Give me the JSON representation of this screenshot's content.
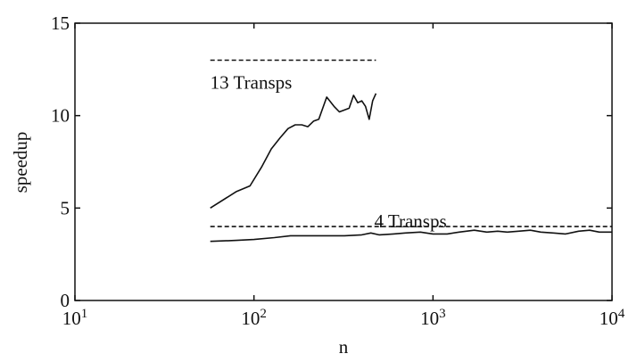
{
  "chart_data": {
    "type": "line",
    "title": "",
    "xlabel": "n",
    "ylabel": "speedup",
    "x_scale": "log",
    "xlim": [
      10,
      10000
    ],
    "ylim": [
      0,
      15
    ],
    "grid": false,
    "x_ticks": [
      {
        "value": 10,
        "base": "10",
        "exp": "1"
      },
      {
        "value": 100,
        "base": "10",
        "exp": "2"
      },
      {
        "value": 1000,
        "base": "10",
        "exp": "3"
      },
      {
        "value": 10000,
        "base": "10",
        "exp": "4"
      }
    ],
    "y_ticks": [
      {
        "value": 0,
        "label": "0"
      },
      {
        "value": 5,
        "label": "5"
      },
      {
        "value": 10,
        "label": "10"
      },
      {
        "value": 15,
        "label": "15"
      }
    ],
    "series": [
      {
        "style": "dashed",
        "x": [
          57,
          480
        ],
        "y": [
          13.0,
          13.0
        ]
      },
      {
        "style": "solid",
        "x": [
          57,
          80,
          95,
          110,
          125,
          140,
          155,
          170,
          185,
          200,
          215,
          230,
          255,
          280,
          300,
          320,
          340,
          360,
          380,
          400,
          420,
          440,
          460,
          480
        ],
        "y": [
          5.0,
          5.9,
          6.2,
          7.2,
          8.2,
          8.8,
          9.3,
          9.5,
          9.5,
          9.4,
          9.7,
          9.8,
          11.0,
          10.5,
          10.2,
          10.3,
          10.4,
          11.1,
          10.7,
          10.8,
          10.5,
          9.8,
          10.8,
          11.2
        ]
      },
      {
        "style": "dashed",
        "x": [
          57,
          10000
        ],
        "y": [
          4.0,
          4.0
        ]
      },
      {
        "style": "solid",
        "x": [
          57,
          80,
          100,
          130,
          160,
          200,
          250,
          320,
          400,
          450,
          500,
          600,
          700,
          850,
          1000,
          1200,
          1400,
          1700,
          2000,
          2300,
          2600,
          3000,
          3500,
          4000,
          4700,
          5500,
          6500,
          7500,
          8500,
          10000
        ],
        "y": [
          3.2,
          3.25,
          3.3,
          3.4,
          3.5,
          3.5,
          3.5,
          3.5,
          3.55,
          3.65,
          3.55,
          3.6,
          3.65,
          3.7,
          3.6,
          3.6,
          3.7,
          3.8,
          3.7,
          3.75,
          3.7,
          3.75,
          3.8,
          3.7,
          3.65,
          3.6,
          3.75,
          3.8,
          3.7,
          3.7
        ]
      }
    ],
    "annotations": [
      {
        "text": "13 Transps",
        "x": 57,
        "y": 11.8
      },
      {
        "text": "4 Transps",
        "x": 470,
        "y": 4.3
      }
    ]
  }
}
